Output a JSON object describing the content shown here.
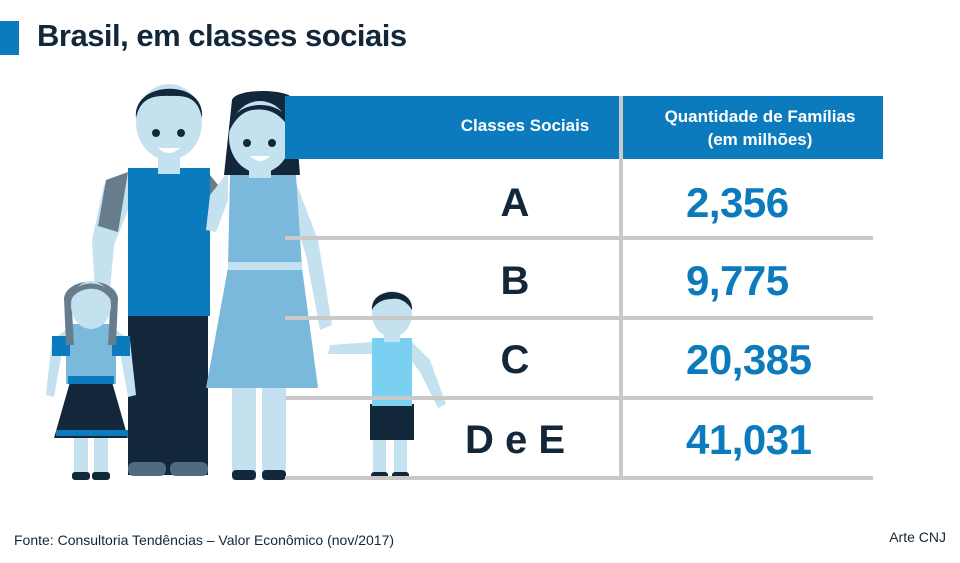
{
  "title": "Brasil, em classes sociais",
  "colors": {
    "accent": "#0c7bbd",
    "dark": "#13273a",
    "grid": "#c9c9c9",
    "skin": "#c4e1ef",
    "light_blue": "#7ab8dc"
  },
  "chart_data": {
    "type": "table",
    "columns": [
      "Classes Sociais",
      "Quantidade de Famílias",
      "(em milhões)"
    ],
    "rows": [
      {
        "class": "A",
        "value": "2,356"
      },
      {
        "class": "B",
        "value": "9,775"
      },
      {
        "class": "C",
        "value": "20,385"
      },
      {
        "class": "D e E",
        "value": "41,031"
      }
    ]
  },
  "footer": {
    "source": "Fonte: Consultoria Tendências – Valor Econômico (nov/2017)",
    "credit": "Arte CNJ"
  }
}
